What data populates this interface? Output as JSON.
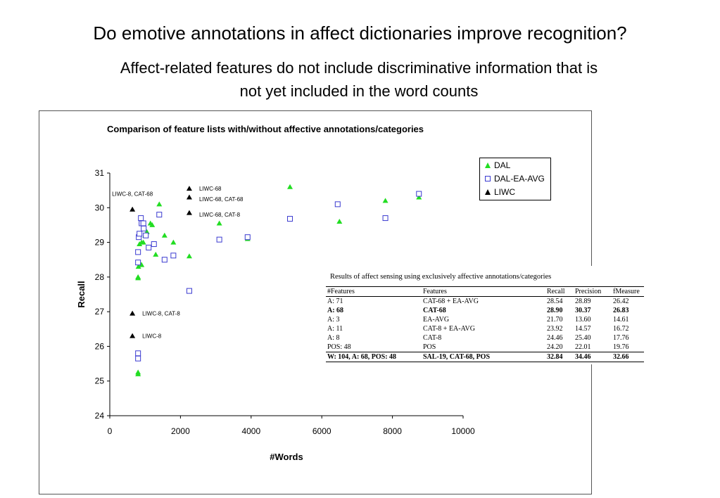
{
  "slide": {
    "title": "Do emotive annotations in affect dictionaries improve recognition?",
    "subtitle_line1": "Affect-related features do not include discriminative information that is",
    "subtitle_line2": "not yet included in the word counts"
  },
  "chart_data": {
    "type": "scatter",
    "title": "Comparison of feature lists with/without affective annotations/categories",
    "xlabel": "#Words",
    "ylabel": "Recall",
    "xlim": [
      0,
      10000
    ],
    "ylim": [
      24,
      31
    ],
    "x_ticks": [
      0,
      2000,
      4000,
      6000,
      8000,
      10000
    ],
    "y_ticks": [
      24,
      25,
      26,
      27,
      28,
      29,
      30,
      31
    ],
    "legend_position": "top-right",
    "series": [
      {
        "name": "DAL",
        "marker": "triangle",
        "color": "#22dd22",
        "points": [
          [
            800,
            25.2
          ],
          [
            800,
            25.25
          ],
          [
            800,
            27.97
          ],
          [
            800,
            28.0
          ],
          [
            810,
            28.3
          ],
          [
            850,
            28.4
          ],
          [
            900,
            28.35
          ],
          [
            840,
            28.95
          ],
          [
            900,
            29.0
          ],
          [
            950,
            29.0
          ],
          [
            1000,
            29.2
          ],
          [
            1050,
            29.3
          ],
          [
            1150,
            29.55
          ],
          [
            1200,
            29.5
          ],
          [
            1400,
            30.1
          ],
          [
            1550,
            29.2
          ],
          [
            1800,
            29.0
          ],
          [
            1300,
            28.65
          ],
          [
            2250,
            28.6
          ],
          [
            3100,
            29.55
          ],
          [
            3900,
            29.1
          ],
          [
            5100,
            30.6
          ],
          [
            6500,
            29.6
          ],
          [
            7800,
            30.2
          ],
          [
            8750,
            30.3
          ]
        ]
      },
      {
        "name": "DAL-EA-AVG",
        "marker": "square",
        "color": "#3a3ad0",
        "points": [
          [
            800,
            25.65
          ],
          [
            800,
            25.8
          ],
          [
            800,
            28.42
          ],
          [
            800,
            28.72
          ],
          [
            820,
            29.15
          ],
          [
            840,
            29.25
          ],
          [
            880,
            29.7
          ],
          [
            900,
            29.55
          ],
          [
            950,
            29.55
          ],
          [
            960,
            29.4
          ],
          [
            1020,
            29.2
          ],
          [
            1100,
            28.85
          ],
          [
            1250,
            28.95
          ],
          [
            1400,
            29.8
          ],
          [
            1550,
            28.5
          ],
          [
            1800,
            28.62
          ],
          [
            2250,
            27.6
          ],
          [
            3100,
            29.08
          ],
          [
            3900,
            29.15
          ],
          [
            5100,
            29.68
          ],
          [
            6450,
            30.1
          ],
          [
            7800,
            29.7
          ],
          [
            8750,
            30.4
          ]
        ]
      },
      {
        "name": "LIWC",
        "marker": "triangle",
        "color": "#000000",
        "points": [
          [
            640,
            29.95
          ],
          [
            640,
            26.95
          ],
          [
            640,
            26.3
          ],
          [
            2250,
            30.55
          ],
          [
            2250,
            30.3
          ],
          [
            2250,
            29.85
          ]
        ]
      }
    ],
    "annotations": [
      {
        "text": "LIWC-68",
        "x": 2250,
        "y": 30.55
      },
      {
        "text": "LIWC-68, CAT-68",
        "x": 2250,
        "y": 30.25
      },
      {
        "text": "LIWC-68, CAT-8",
        "x": 2250,
        "y": 29.8
      },
      {
        "text": "LIWC-8, CAT-68",
        "x": 640,
        "y": 30.2
      },
      {
        "text": "LIWC-8, CAT-8",
        "x": 640,
        "y": 26.95
      },
      {
        "text": "LIWC-8",
        "x": 640,
        "y": 26.3
      }
    ]
  },
  "results_table": {
    "caption": "Results of affect sensing using exclusively affective annotations/categories",
    "headers": [
      "#Features",
      "Features",
      "Recall",
      "Precision",
      "fMeasure"
    ],
    "rows": [
      {
        "cells": [
          "A: 71",
          "CAT-68 + EA-AVG",
          "28.54",
          "28.89",
          "26.42"
        ],
        "bold": false
      },
      {
        "cells": [
          "A: 68",
          "CAT-68",
          "28.90",
          "30.37",
          "26.83"
        ],
        "bold": true
      },
      {
        "cells": [
          "A: 3",
          "EA-AVG",
          "21.70",
          "13.60",
          "14.61"
        ],
        "bold": false
      },
      {
        "cells": [
          "A: 11",
          "CAT-8 + EA-AVG",
          "23.92",
          "14.57",
          "16.72"
        ],
        "bold": false
      },
      {
        "cells": [
          "A: 8",
          "CAT-8",
          "24.46",
          "25.40",
          "17.76"
        ],
        "bold": false
      },
      {
        "cells": [
          "POS: 48",
          "POS",
          "24.20",
          "22.01",
          "19.76"
        ],
        "bold": false
      },
      {
        "cells": [
          "W: 104, A: 68, POS: 48",
          "SAL-19, CAT-68, POS",
          "32.84",
          "34.46",
          "32.66"
        ],
        "bold": true
      }
    ]
  }
}
